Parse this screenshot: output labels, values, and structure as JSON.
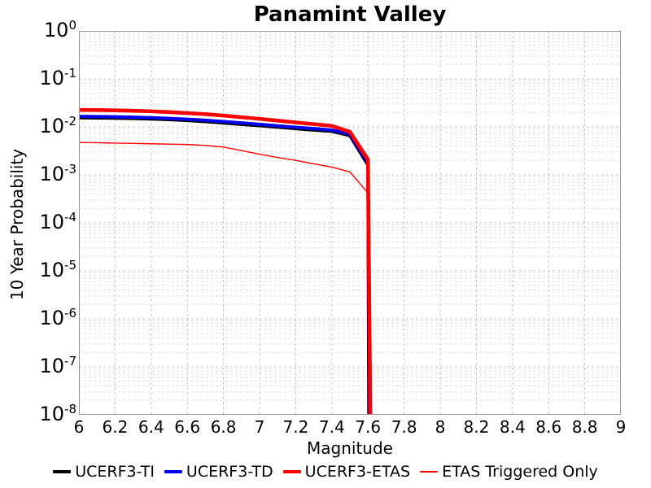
{
  "chart_data": {
    "type": "line",
    "title": "Panamint Valley",
    "xlabel": "Magnitude",
    "ylabel": "10 Year Probability",
    "x_scale": "linear",
    "y_scale": "log",
    "xlim": [
      6,
      9
    ],
    "ylim": [
      1e-08,
      1
    ],
    "x_ticks": [
      6,
      6.2,
      6.4,
      6.6,
      6.8,
      7,
      7.2,
      7.4,
      7.6,
      7.8,
      8,
      8.2,
      8.4,
      8.6,
      8.8,
      9
    ],
    "x_tick_labels": [
      "6",
      "6.2",
      "6.4",
      "6.6",
      "6.8",
      "7",
      "7.2",
      "7.4",
      "7.6",
      "7.8",
      "8",
      "8.2",
      "8.4",
      "8.6",
      "8.8",
      "9"
    ],
    "y_tick_exponents": [
      0,
      -1,
      -2,
      -3,
      -4,
      -5,
      -6,
      -7,
      -8
    ],
    "grid": "dashed gray, major decades + minor log lines, vertical every 0.2",
    "legend_position": "bottom-center",
    "series": [
      {
        "name": "UCERF3-TI",
        "color": "#000000",
        "width": 4,
        "x": [
          6.0,
          6.1,
          6.2,
          6.3,
          6.4,
          6.5,
          6.6,
          6.7,
          6.8,
          6.9,
          7.0,
          7.1,
          7.2,
          7.3,
          7.4,
          7.5,
          7.6,
          7.607
        ],
        "y": [
          0.0155,
          0.0154,
          0.0152,
          0.015,
          0.0146,
          0.0142,
          0.0136,
          0.0129,
          0.0121,
          0.0113,
          0.0106,
          0.0099,
          0.0092,
          0.0086,
          0.0081,
          0.0066,
          0.0016,
          1e-10
        ]
      },
      {
        "name": "UCERF3-TD",
        "color": "#0000ee",
        "width": 4,
        "x": [
          6.0,
          6.1,
          6.2,
          6.3,
          6.4,
          6.5,
          6.6,
          6.7,
          6.8,
          6.9,
          7.0,
          7.1,
          7.2,
          7.3,
          7.4,
          7.5,
          7.6,
          7.612
        ],
        "y": [
          0.0165,
          0.0164,
          0.0162,
          0.0159,
          0.0155,
          0.015,
          0.0144,
          0.0137,
          0.0129,
          0.0121,
          0.0113,
          0.0105,
          0.0098,
          0.0092,
          0.0086,
          0.0071,
          0.0018,
          1e-10
        ]
      },
      {
        "name": "UCERF3-ETAS",
        "color": "#ff0000",
        "width": 4.6,
        "x": [
          6.0,
          6.1,
          6.2,
          6.3,
          6.4,
          6.5,
          6.6,
          6.7,
          6.8,
          6.9,
          7.0,
          7.1,
          7.2,
          7.3,
          7.4,
          7.5,
          7.6,
          7.618
        ],
        "y": [
          0.0225,
          0.0224,
          0.0221,
          0.0217,
          0.0211,
          0.0203,
          0.0194,
          0.0184,
          0.0172,
          0.0159,
          0.0147,
          0.0135,
          0.0124,
          0.0114,
          0.0105,
          0.0079,
          0.0021,
          1e-10
        ]
      },
      {
        "name": "ETAS Triggered Only",
        "color": "#ff0000",
        "width": 1.4,
        "x": [
          6.0,
          6.1,
          6.2,
          6.3,
          6.4,
          6.5,
          6.6,
          6.7,
          6.8,
          6.9,
          7.0,
          7.1,
          7.2,
          7.3,
          7.4,
          7.5,
          7.6,
          7.614
        ],
        "y": [
          0.0047,
          0.00468,
          0.0046,
          0.00452,
          0.00445,
          0.00438,
          0.0043,
          0.0041,
          0.0038,
          0.0032,
          0.0027,
          0.0023,
          0.002,
          0.0017,
          0.00145,
          0.00115,
          0.00042,
          1e-10
        ]
      }
    ],
    "colors": {
      "background": "#ffffff",
      "frame": "#9a9a9a",
      "grid_major": "#c6c6c6",
      "grid_minor": "#dedede",
      "text": "#000000"
    }
  }
}
